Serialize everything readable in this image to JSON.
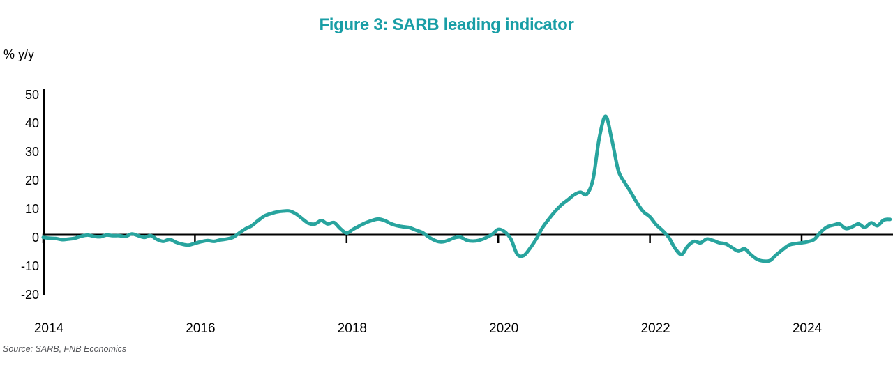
{
  "title": "Figure 3: SARB leading indicator",
  "y_axis_unit": "% y/y",
  "source": "Source: SARB, FNB Economics",
  "colors": {
    "title": "#199EA6",
    "line": "#28A49E",
    "axis": "#000000",
    "tick_label": "#000000",
    "source_text": "#55565A",
    "background": "#FFFFFF"
  },
  "chart_data": {
    "type": "line",
    "title": "Figure 3: SARB leading indicator",
    "series_name": "SARB leading indicator, % y/y",
    "frequency": "monthly",
    "start": "2014-01",
    "end": "2025-03",
    "ylabel": "% y/y",
    "ylim": [
      -20,
      50
    ],
    "grid": false,
    "legend": "none",
    "y_ticks": [
      50,
      40,
      30,
      20,
      10,
      0,
      -10,
      -20
    ],
    "y_tick_labels": [
      "50",
      "40",
      "30",
      "20",
      "10",
      "0",
      "-10",
      "-20"
    ],
    "x_tick_labels": [
      "2014",
      "2016",
      "2018",
      "2020",
      "2022",
      "2024"
    ],
    "values": [
      -0.9,
      -1.2,
      -1.3,
      -1.7,
      -1.5,
      -1.2,
      -0.5,
      -0.1,
      -0.5,
      -0.7,
      -0.1,
      -0.3,
      -0.3,
      -0.6,
      0.3,
      -0.3,
      -0.9,
      -0.3,
      -1.6,
      -2.3,
      -1.6,
      -2.6,
      -3.3,
      -3.6,
      -3.0,
      -2.4,
      -2.0,
      -2.3,
      -1.8,
      -1.5,
      -0.9,
      0.6,
      2.1,
      3.2,
      5.0,
      6.6,
      7.4,
      8.0,
      8.3,
      8.3,
      7.3,
      5.6,
      4.0,
      3.8,
      5.0,
      3.8,
      4.3,
      2.2,
      0.6,
      1.9,
      3.1,
      4.2,
      5.0,
      5.5,
      5.0,
      3.9,
      3.2,
      2.8,
      2.5,
      1.6,
      0.8,
      -0.8,
      -2.0,
      -2.5,
      -2.0,
      -1.1,
      -0.8,
      -1.9,
      -2.2,
      -1.9,
      -1.1,
      0.1,
      1.9,
      1.1,
      -1.5,
      -6.8,
      -7.3,
      -4.8,
      -1.5,
      2.5,
      5.5,
      8.2,
      10.5,
      12.2,
      14.0,
      14.9,
      14.2,
      19.5,
      34.0,
      41.5,
      33.0,
      22.5,
      18.3,
      14.8,
      11.0,
      8.0,
      6.3,
      3.5,
      1.5,
      -1.0,
      -4.8,
      -6.9,
      -3.9,
      -2.3,
      -2.8,
      -1.5,
      -2.0,
      -2.8,
      -3.2,
      -4.5,
      -5.7,
      -4.9,
      -7.0,
      -8.6,
      -9.2,
      -9.0,
      -7.0,
      -5.2,
      -3.6,
      -3.1,
      -2.8,
      -2.4,
      -1.6,
      0.9,
      2.7,
      3.4,
      3.8,
      2.2,
      2.8,
      3.8,
      2.6,
      4.2,
      3.2,
      5.2,
      5.4
    ]
  }
}
